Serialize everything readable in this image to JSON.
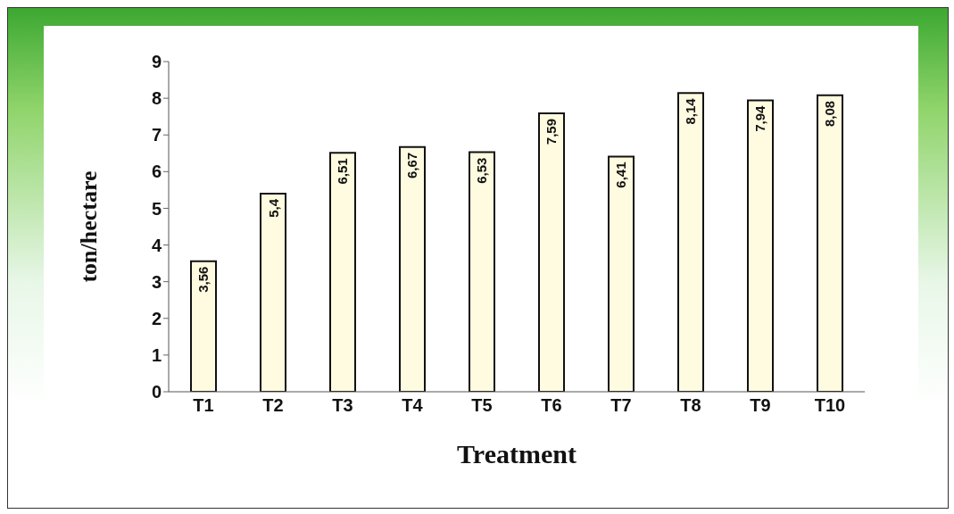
{
  "chart_data": {
    "type": "bar",
    "xlabel": "Treatment",
    "ylabel": "ton/hectare",
    "categories": [
      "T1",
      "T2",
      "T3",
      "T4",
      "T5",
      "T6",
      "T7",
      "T8",
      "T9",
      "T10"
    ],
    "values": [
      3.56,
      5.4,
      6.51,
      6.67,
      6.53,
      7.59,
      6.41,
      8.14,
      7.94,
      8.08
    ],
    "value_labels": [
      "3,56",
      "5,4",
      "6,51",
      "6,67",
      "6,53",
      "7,59",
      "6,41",
      "8,14",
      "7,94",
      "8,08"
    ],
    "color": "#fffbe0",
    "ylim": [
      0,
      9
    ],
    "yticks": [
      0,
      1,
      2,
      3,
      4,
      5,
      6,
      7,
      8,
      9
    ],
    "grid": false,
    "legend": false
  }
}
